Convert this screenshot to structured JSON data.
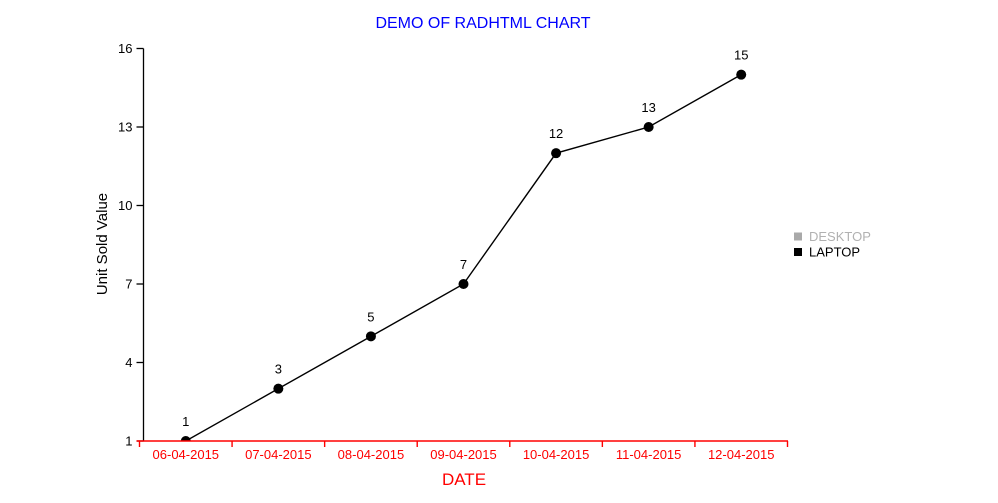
{
  "page": {
    "background": "#ffffff"
  },
  "title": {
    "text": "DEMO OF RADHTML CHART",
    "color": "#0000ff"
  },
  "y_axis": {
    "label": "Unit Sold Value",
    "label_color": "#000000",
    "line_color": "#000000",
    "tick_label_color": "#000000"
  },
  "x_axis": {
    "label": "DATE",
    "label_color": "#ff0000",
    "line_color": "#ff0000",
    "tick_label_color": "#ff0000"
  },
  "legend": {
    "position": "right",
    "items": [
      {
        "label": "DESKTOP",
        "marker_color": "#a9a9a9",
        "text_color": "#b1b1b1",
        "enabled": false
      },
      {
        "label": "LAPTOP",
        "marker_color": "#000000",
        "text_color": "#000000",
        "enabled": true
      }
    ]
  },
  "chart_data": {
    "type": "line",
    "title": "DEMO OF RADHTML CHART",
    "xlabel": "DATE",
    "ylabel": "Unit Sold Value",
    "categories": [
      "06-04-2015",
      "07-04-2015",
      "08-04-2015",
      "09-04-2015",
      "10-04-2015",
      "11-04-2015",
      "12-04-2015"
    ],
    "series": [
      {
        "name": "DESKTOP",
        "values": null,
        "color": "#a9a9a9",
        "visible": false
      },
      {
        "name": "LAPTOP",
        "values": [
          1,
          3,
          5,
          7,
          12,
          13,
          15
        ],
        "color": "#000000",
        "visible": true,
        "point_labels": [
          1,
          3,
          5,
          7,
          12,
          13,
          15
        ]
      }
    ],
    "yticks": [
      1,
      4,
      7,
      10,
      13,
      16
    ],
    "ylim": [
      1,
      16
    ],
    "grid": false,
    "legend_position": "right",
    "point_label_color": "#000000",
    "x_tick_label_color": "#ff0000",
    "y_tick_label_color": "#000000"
  }
}
